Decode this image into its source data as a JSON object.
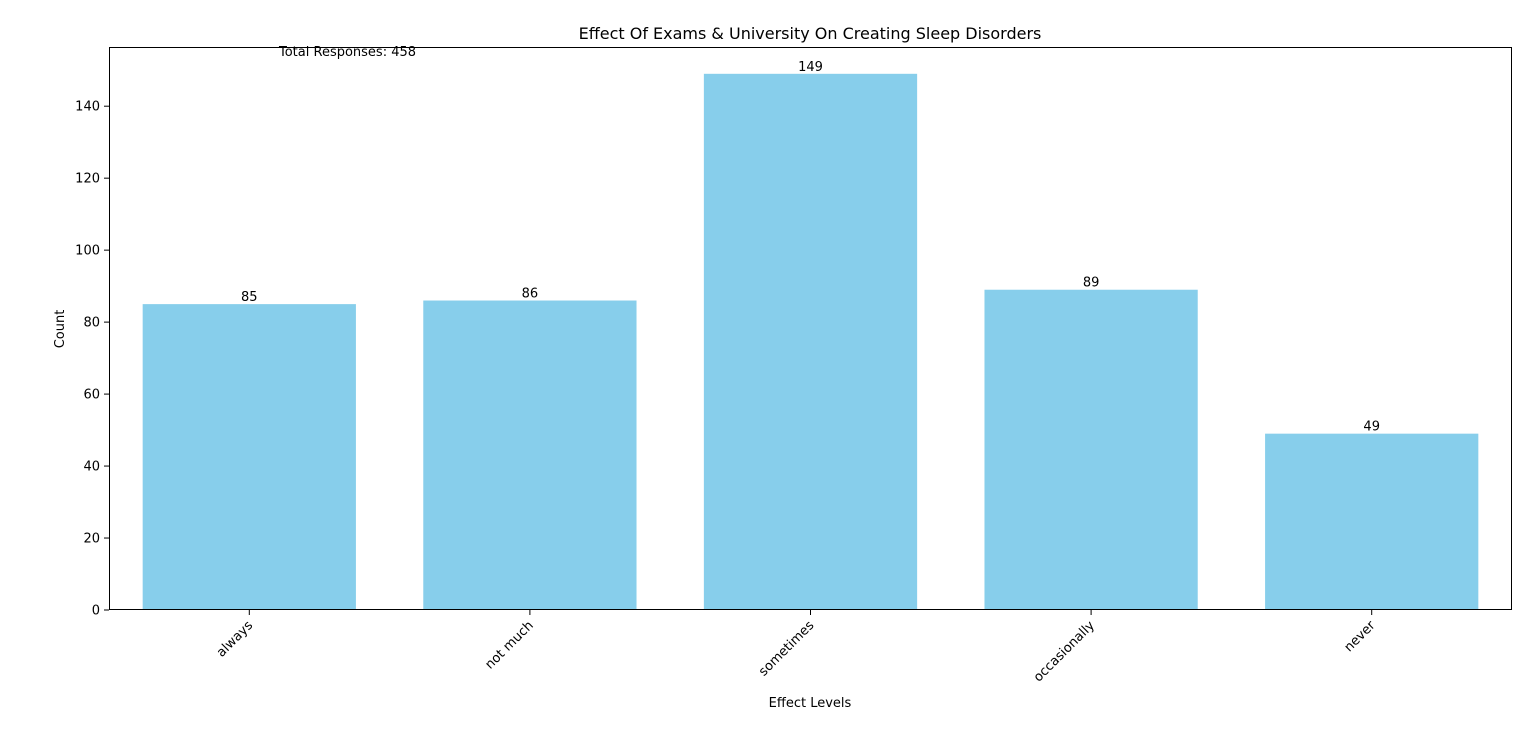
{
  "chart_data": {
    "type": "bar",
    "title": "Effect Of Exams & University On Creating Sleep Disorders",
    "xlabel": "Effect Levels",
    "ylabel": "Count",
    "annotation": "Total Responses: 458",
    "categories": [
      "always",
      "not much",
      "sometimes",
      "occasionally",
      "never"
    ],
    "values": [
      85,
      86,
      149,
      89,
      49
    ],
    "ylim": [
      0,
      156.45
    ],
    "yticks": [
      0,
      20,
      40,
      60,
      80,
      100,
      120,
      140
    ],
    "bar_color": "#87CEEB",
    "grid": false,
    "legend": "none"
  }
}
